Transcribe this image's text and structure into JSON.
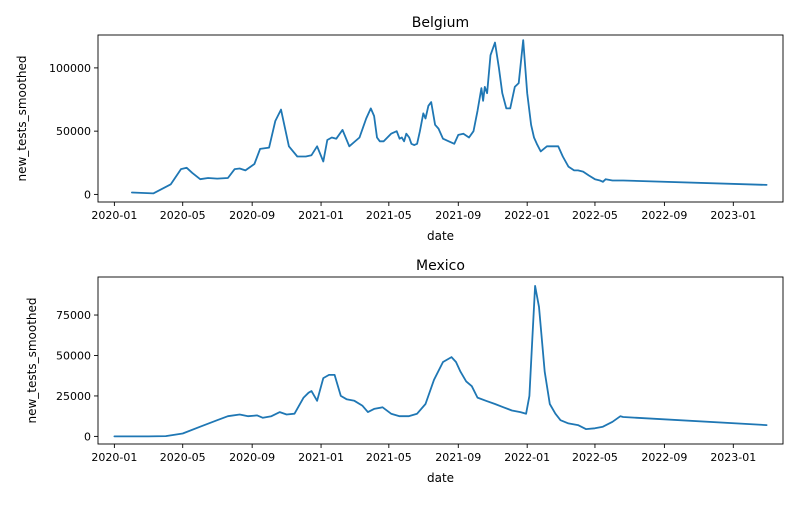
{
  "chart_data": [
    {
      "type": "line",
      "title": "Belgium",
      "xlabel": "date",
      "ylabel": "new_tests_smoothed",
      "xlim": [
        "2019-12-03",
        "2023-03-30"
      ],
      "ylim": [
        -6000,
        126000
      ],
      "xticks": [
        "2020-01",
        "2020-05",
        "2020-09",
        "2021-01",
        "2021-05",
        "2021-09",
        "2022-01",
        "2022-05",
        "2022-09",
        "2023-01"
      ],
      "yticks": [
        0,
        50000,
        100000
      ],
      "ytick_labels": [
        "0",
        "50000",
        "100000"
      ],
      "grid": false,
      "color": "#1f77b4",
      "series": [
        {
          "x": [
            "2020-02-01",
            "2020-03-10",
            "2020-04-10",
            "2020-04-28",
            "2020-05-08",
            "2020-05-18",
            "2020-06-01",
            "2020-06-15",
            "2020-07-01",
            "2020-07-20",
            "2020-08-01",
            "2020-08-10",
            "2020-08-20",
            "2020-09-05",
            "2020-09-15",
            "2020-10-01",
            "2020-10-12",
            "2020-10-22",
            "2020-11-05",
            "2020-11-20",
            "2020-12-05",
            "2020-12-15",
            "2020-12-25",
            "2021-01-05",
            "2021-01-12",
            "2021-01-20",
            "2021-01-28",
            "2021-02-08",
            "2021-02-20",
            "2021-03-10",
            "2021-03-22",
            "2021-03-30",
            "2021-04-05",
            "2021-04-10",
            "2021-04-15",
            "2021-04-22",
            "2021-05-05",
            "2021-05-15",
            "2021-05-20",
            "2021-05-24",
            "2021-05-28",
            "2021-06-01",
            "2021-06-06",
            "2021-06-10",
            "2021-06-15",
            "2021-06-20",
            "2021-06-25",
            "2021-07-01",
            "2021-07-05",
            "2021-07-10",
            "2021-07-15",
            "2021-07-22",
            "2021-07-28",
            "2021-08-05",
            "2021-08-15",
            "2021-08-25",
            "2021-09-01",
            "2021-09-10",
            "2021-09-20",
            "2021-09-28",
            "2021-10-05",
            "2021-10-12",
            "2021-10-15",
            "2021-10-18",
            "2021-10-22",
            "2021-10-28",
            "2021-11-05",
            "2021-11-12",
            "2021-11-18",
            "2021-11-25",
            "2021-12-02",
            "2021-12-10",
            "2021-12-17",
            "2021-12-25",
            "2022-01-01",
            "2022-01-08",
            "2022-01-13",
            "2022-01-18",
            "2022-01-25",
            "2022-02-05",
            "2022-02-15",
            "2022-02-25",
            "2022-03-05",
            "2022-03-15",
            "2022-03-25",
            "2022-04-01",
            "2022-04-10",
            "2022-04-20",
            "2022-05-01",
            "2022-05-10",
            "2022-05-15",
            "2022-05-20",
            "2022-06-01",
            "2022-06-10",
            "2022-06-20",
            "2023-03-01"
          ],
          "values": [
            1500,
            800,
            8000,
            20000,
            21000,
            17000,
            12000,
            13000,
            12500,
            13000,
            20000,
            20500,
            19000,
            24000,
            36000,
            37000,
            58000,
            67000,
            38000,
            30000,
            30000,
            31000,
            38000,
            26000,
            43000,
            45000,
            44000,
            51000,
            38000,
            45000,
            60000,
            68000,
            62000,
            45000,
            42000,
            42000,
            48000,
            50000,
            44000,
            45000,
            42000,
            48000,
            45000,
            40000,
            39000,
            40000,
            50000,
            64000,
            60000,
            70000,
            73000,
            55000,
            52000,
            44000,
            42000,
            40000,
            47000,
            48000,
            45000,
            50000,
            66000,
            84000,
            74000,
            85000,
            80000,
            110000,
            120000,
            100000,
            80000,
            68000,
            68000,
            85000,
            88000,
            122000,
            80000,
            55000,
            45000,
            40000,
            34000,
            38000,
            38000,
            38000,
            30000,
            22000,
            19000,
            19000,
            18000,
            15000,
            12000,
            11000,
            10000,
            12000,
            11000,
            11000,
            11000,
            7500
          ]
        }
      ]
    },
    {
      "type": "line",
      "title": "Mexico",
      "xlabel": "date",
      "ylabel": "new_tests_smoothed",
      "xlim": [
        "2019-12-03",
        "2023-03-30"
      ],
      "ylim": [
        -4700,
        98500
      ],
      "xticks": [
        "2020-01",
        "2020-05",
        "2020-09",
        "2021-01",
        "2021-05",
        "2021-09",
        "2022-01",
        "2022-05",
        "2022-09",
        "2023-01"
      ],
      "yticks": [
        0,
        25000,
        50000,
        75000
      ],
      "ytick_labels": [
        "0",
        "25000",
        "50000",
        "75000"
      ],
      "grid": false,
      "color": "#1f77b4",
      "series": [
        {
          "x": [
            "2020-01-01",
            "2020-03-01",
            "2020-04-01",
            "2020-05-01",
            "2020-06-01",
            "2020-07-01",
            "2020-07-20",
            "2020-08-10",
            "2020-08-25",
            "2020-09-10",
            "2020-09-20",
            "2020-10-05",
            "2020-10-20",
            "2020-11-01",
            "2020-11-15",
            "2020-12-01",
            "2020-12-10",
            "2020-12-15",
            "2020-12-25",
            "2021-01-05",
            "2021-01-15",
            "2021-01-25",
            "2021-02-05",
            "2021-02-15",
            "2021-03-01",
            "2021-03-15",
            "2021-03-25",
            "2021-04-05",
            "2021-04-20",
            "2021-05-05",
            "2021-05-20",
            "2021-06-05",
            "2021-06-20",
            "2021-07-05",
            "2021-07-20",
            "2021-08-05",
            "2021-08-20",
            "2021-08-28",
            "2021-09-05",
            "2021-09-15",
            "2021-09-25",
            "2021-10-05",
            "2021-10-20",
            "2021-11-05",
            "2021-11-20",
            "2021-12-05",
            "2021-12-20",
            "2021-12-30",
            "2022-01-05",
            "2022-01-10",
            "2022-01-15",
            "2022-01-22",
            "2022-02-01",
            "2022-02-10",
            "2022-02-20",
            "2022-03-01",
            "2022-03-15",
            "2022-04-01",
            "2022-04-15",
            "2022-05-01",
            "2022-05-15",
            "2022-06-01",
            "2022-06-15",
            "2022-06-20",
            "2023-03-01"
          ],
          "values": [
            0,
            0,
            200,
            1800,
            6000,
            10000,
            12500,
            13500,
            12500,
            13000,
            11500,
            12500,
            15000,
            13500,
            14000,
            24000,
            27000,
            28000,
            22000,
            36000,
            38000,
            38000,
            25000,
            23000,
            22000,
            19000,
            15000,
            17000,
            18000,
            14000,
            12500,
            12500,
            14000,
            20000,
            35000,
            46000,
            49000,
            46000,
            40000,
            34000,
            31000,
            24000,
            22000,
            20000,
            18000,
            16000,
            15000,
            14000,
            25000,
            60000,
            93000,
            80000,
            40000,
            20000,
            14000,
            10000,
            8000,
            7000,
            4500,
            5000,
            6000,
            9000,
            12500,
            12000,
            7000
          ]
        }
      ]
    }
  ]
}
